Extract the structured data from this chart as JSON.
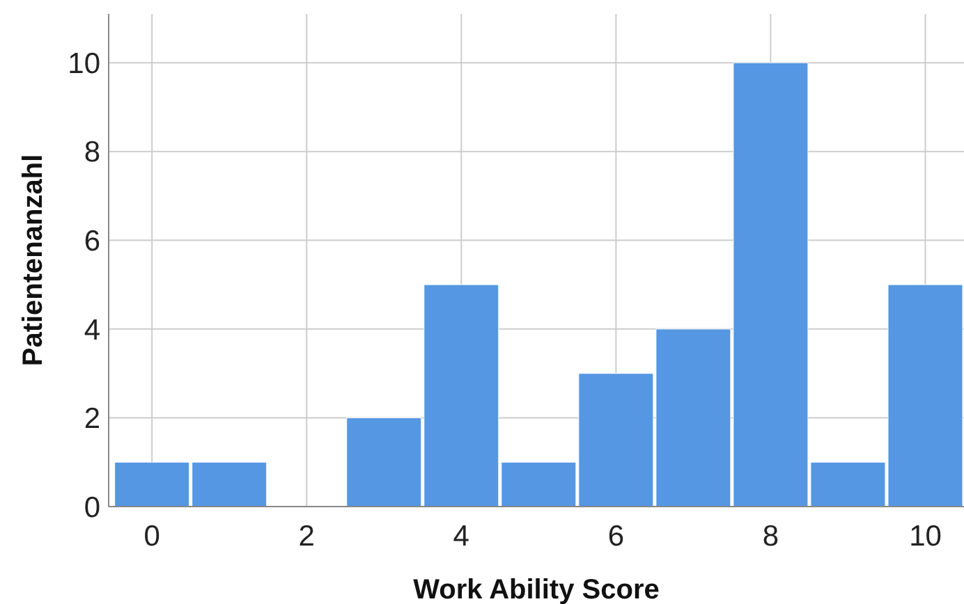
{
  "chart_data": {
    "type": "histogram",
    "xlabel": "Work Ability Score",
    "ylabel": "Patientenanzahl",
    "bins": [
      -0.5,
      0.5,
      1.5,
      2.5,
      3.5,
      4.5,
      5.5,
      6.5,
      7.5,
      8.5,
      9.5,
      10.5
    ],
    "values": [
      1,
      1,
      0,
      2,
      5,
      1,
      3,
      4,
      10,
      1,
      5
    ],
    "color": "#5597e3",
    "xlim": [
      -0.56,
      10.5
    ],
    "xticks": [
      0,
      2,
      4,
      6,
      8,
      10
    ],
    "ylim": [
      0,
      11.1
    ],
    "yticks": [
      0,
      2,
      4,
      6,
      8,
      10
    ],
    "grid": true
  }
}
